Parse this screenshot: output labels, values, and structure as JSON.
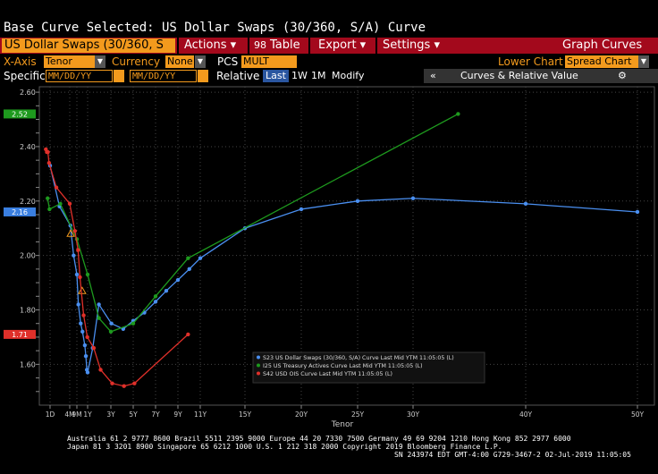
{
  "title": "Base Curve Selected: US Dollar Swaps (30/360, S/A) Curve",
  "menubar": {
    "curve_select": "US Dollar Swaps (30/360, S",
    "actions": "Actions ▾",
    "table_icon": "table-icon",
    "table": "Table",
    "export": "Export ▾",
    "settings": "Settings ▾",
    "graph_curves": "Graph Curves"
  },
  "row1": {
    "xaxis_label": "X-Axis",
    "xaxis_value": "Tenor",
    "currency_label": "Currency",
    "currency_value": "None",
    "pcs_label": "PCS",
    "pcs_value": "MULT",
    "lower_chart_label": "Lower Chart",
    "lower_chart_value": "Spread Chart"
  },
  "row2": {
    "specific_label": "Specific",
    "date_from": "MM/DD/YY",
    "date_to": "MM/DD/YY",
    "relative_label": "Relative",
    "tabs": [
      "Last",
      "1W",
      "1M",
      "Modify"
    ],
    "collapse": "«",
    "panel_title": "Curves & Relative Value",
    "gear_icon": "gear-icon"
  },
  "chart_data": {
    "type": "line",
    "xlabel": "Tenor",
    "ylabel": "",
    "ylim": [
      1.45,
      2.62
    ],
    "x_ticks": [
      "1D",
      "4M",
      "9M",
      "1Y",
      "3Y",
      "5Y",
      "7Y",
      "9Y",
      "11Y",
      "15Y",
      "20Y",
      "25Y",
      "30Y",
      "40Y",
      "50Y"
    ],
    "y_ticks": [
      "1.60",
      "1.80",
      "2.00",
      "2.20",
      "2.40",
      "2.60"
    ],
    "grid": true,
    "legend_placement": "bottom-right",
    "markers": [
      {
        "label": "2.52",
        "value": 2.52,
        "color": "#1e9a1e"
      },
      {
        "label": "2.16",
        "value": 2.16,
        "color": "#3a7fe0"
      },
      {
        "label": "1.71",
        "value": 1.71,
        "color": "#e0302a"
      }
    ],
    "series": [
      {
        "name": "S23 US Dollar Swaps (30/360, S/A) Curve Last Mid YTM 11:05:05 (L)",
        "color": "#4a8ff0",
        "x": [
          "1M",
          "2M",
          "3M",
          "4M",
          "5M",
          "6M",
          "7M",
          "8M",
          "9M",
          "10M",
          "11M",
          "1Y",
          "18M",
          "2Y",
          "3Y",
          "4Y",
          "5Y",
          "6Y",
          "7Y",
          "8Y",
          "9Y",
          "10Y",
          "11Y",
          "15Y",
          "20Y",
          "25Y",
          "30Y",
          "40Y",
          "50Y"
        ],
        "tx": [
          0.37,
          0.49,
          0.64,
          0.74,
          0.84,
          0.94,
          1.1,
          1.22,
          1.38,
          1.45,
          1.52,
          1.57,
          1.72,
          1.9,
          2.27,
          2.72,
          3.1,
          3.55,
          4.0,
          4.43,
          4.9,
          5.35,
          5.78,
          7.58,
          9.5,
          11.55,
          13.5,
          16.0,
          20.1
        ],
        "values": [
          2.33,
          2.18,
          2.11,
          2.0,
          1.93,
          1.82,
          1.75,
          1.72,
          1.67,
          1.63,
          1.58,
          1.57,
          1.66,
          1.82,
          1.75,
          1.73,
          1.76,
          1.79,
          1.83,
          1.87,
          1.91,
          1.95,
          1.99,
          2.1,
          2.17,
          2.2,
          2.21,
          2.19,
          2.16
        ]
      },
      {
        "name": "I25 US Treasury Actives Curve Last Mid YTM 11:05:05 (L)",
        "color": "#1e9a1e",
        "x": [
          "1M",
          "2M",
          "3M",
          "6M",
          "1Y",
          "2Y",
          "3Y",
          "5Y",
          "7Y",
          "10Y",
          "30Y"
        ],
        "tx": [
          0.2,
          0.33,
          0.5,
          0.84,
          1.57,
          1.9,
          2.25,
          3.1,
          4.0,
          5.3,
          14.5
        ],
        "values": [
          2.21,
          2.17,
          2.19,
          2.06,
          1.93,
          1.77,
          1.72,
          1.75,
          1.85,
          1.99,
          2.52
        ],
        "triangles": [
          {
            "tx": 0.65,
            "value": 2.08
          },
          {
            "tx": 1.2,
            "value": 1.87
          }
        ]
      },
      {
        "name": "S42 USD OIS Curve Last Mid YTM 11:05:05 (L)",
        "color": "#e0302a",
        "x": [
          "1W",
          "2W",
          "3W",
          "1M",
          "2M",
          "3M",
          "4M",
          "5M",
          "6M",
          "9M",
          "1Y",
          "18M",
          "2Y",
          "3Y",
          "4Y",
          "5Y",
          "10Y"
        ],
        "tx": [
          0.08,
          0.15,
          0.22,
          0.3,
          0.45,
          0.62,
          0.78,
          0.92,
          1.05,
          1.3,
          1.55,
          1.75,
          1.95,
          2.3,
          2.75,
          3.15,
          5.3
        ],
        "values": [
          2.39,
          2.38,
          2.38,
          2.34,
          2.25,
          2.19,
          2.09,
          2.02,
          1.92,
          1.78,
          1.7,
          1.66,
          1.58,
          1.53,
          1.52,
          1.53,
          1.71
        ]
      }
    ]
  },
  "footer": {
    "line1": "Australia 61 2 9777 8600 Brazil 5511 2395 9000 Europe 44 20 7330 7500 Germany 49 69 9204 1210 Hong Kong 852 2977 6000",
    "line2": "Japan 81 3 3201 8900        Singapore 65 6212 1000        U.S. 1 212 318 2000                Copyright 2019 Bloomberg Finance L.P.",
    "line3": "SN 243974 EDT  GMT-4:00 G729-3467-2 02-Jul-2019 11:05:05"
  }
}
